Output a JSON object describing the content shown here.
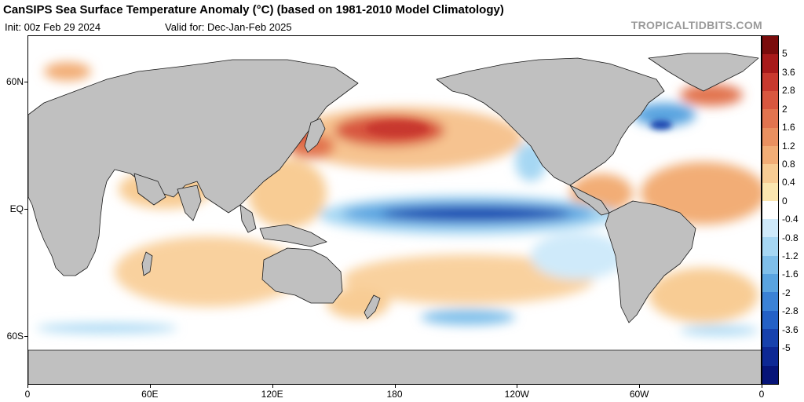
{
  "header": {
    "title": "CanSIPS Sea Surface Temperature Anomaly (°C) (based on 1981-2010 Model Climatology)",
    "init": "Init: 00z Feb 29 2024",
    "valid": "Valid for: Dec-Jan-Feb 2025",
    "brand": "TROPICALTIDBITS.COM"
  },
  "axes": {
    "y_labels": [
      {
        "label": "60N",
        "lat": 60
      },
      {
        "label": "EQ",
        "lat": 0
      },
      {
        "label": "60S",
        "lat": -60
      }
    ],
    "x_labels": [
      {
        "label": "0",
        "lon": 0
      },
      {
        "label": "60E",
        "lon": 60
      },
      {
        "label": "120E",
        "lon": 120
      },
      {
        "label": "180",
        "lon": 180
      },
      {
        "label": "120W",
        "lon": 240
      },
      {
        "label": "60W",
        "lon": 300
      },
      {
        "label": "0",
        "lon": 360
      }
    ]
  },
  "colorbar": {
    "labels": [
      "5",
      "3.6",
      "2.8",
      "2",
      "1.6",
      "1.2",
      "0.8",
      "0.4",
      "0",
      "-0.4",
      "-0.8",
      "-1.2",
      "-1.6",
      "-2",
      "-2.8",
      "-3.6",
      "-5"
    ],
    "colors": [
      "#7a0c0c",
      "#a81a1a",
      "#c8392e",
      "#d8573f",
      "#e2744f",
      "#ea9060",
      "#f2ad76",
      "#f8cc94",
      "#fbe6b0",
      "#ffffff",
      "#cfeafa",
      "#a6d7f3",
      "#7fbfea",
      "#5aa4e0",
      "#3b82d6",
      "#2461c6",
      "#1742ad",
      "#0d2894",
      "#061478"
    ]
  },
  "map": {
    "land_color": "#c0c0c0",
    "ocean_color": "#ffffff",
    "features": [
      {
        "name": "Equatorial Pacific cold tongue",
        "color": "#2461c6"
      },
      {
        "name": "North Pacific warm anomaly",
        "color": "#e2744f"
      },
      {
        "name": "North Atlantic cold patch",
        "color": "#2461c6"
      }
    ]
  }
}
